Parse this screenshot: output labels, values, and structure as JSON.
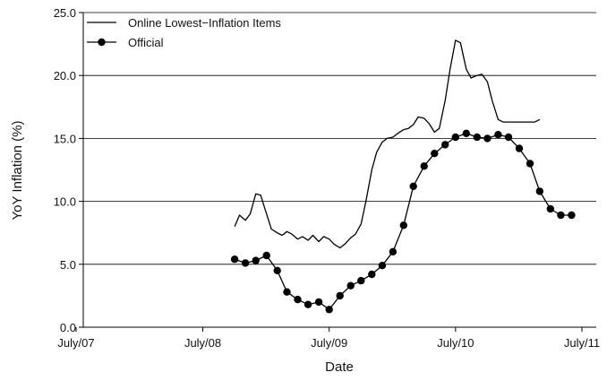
{
  "chart_data": {
    "type": "line",
    "title": "",
    "xlabel": "Date",
    "ylabel": "YoY Inflation (%)",
    "ylim": [
      0,
      25
    ],
    "xlim": [
      "2007-07",
      "2011-07"
    ],
    "x_ticks": [
      "July/07",
      "July/08",
      "July/09",
      "July/10",
      "July/11"
    ],
    "y_ticks": [
      "0.0",
      "5.0",
      "10.0",
      "15.0",
      "20.0",
      "25.0"
    ],
    "grid": "horizontal",
    "legend_position": "top-left",
    "series": [
      {
        "name": "Online Lowest−Inflation Items",
        "marker": "none",
        "color": "#000000",
        "x": [
          "2008-10-01",
          "2008-10-15",
          "2008-11-01",
          "2008-11-15",
          "2008-12-01",
          "2008-12-15",
          "2009-01-01",
          "2009-01-15",
          "2009-02-01",
          "2009-02-15",
          "2009-03-01",
          "2009-03-15",
          "2009-04-01",
          "2009-04-15",
          "2009-05-01",
          "2009-05-15",
          "2009-06-01",
          "2009-06-15",
          "2009-07-01",
          "2009-07-15",
          "2009-08-01",
          "2009-08-15",
          "2009-09-01",
          "2009-09-15",
          "2009-10-01",
          "2009-10-15",
          "2009-11-01",
          "2009-11-15",
          "2009-12-01",
          "2009-12-15",
          "2010-01-01",
          "2010-01-15",
          "2010-02-01",
          "2010-02-15",
          "2010-03-01",
          "2010-03-15",
          "2010-04-01",
          "2010-04-15",
          "2010-05-01",
          "2010-05-15",
          "2010-06-01",
          "2010-06-15",
          "2010-07-01",
          "2010-07-15",
          "2010-08-01",
          "2010-08-15",
          "2010-09-01",
          "2010-09-15",
          "2010-10-01",
          "2010-10-15",
          "2010-11-01",
          "2010-11-15",
          "2010-12-01",
          "2010-12-15",
          "2011-01-01",
          "2011-01-15",
          "2011-02-01",
          "2011-02-15",
          "2011-03-01"
        ],
        "values": [
          8.0,
          8.9,
          8.5,
          9.0,
          10.6,
          10.5,
          9.0,
          7.8,
          7.5,
          7.3,
          7.6,
          7.4,
          7.0,
          7.2,
          6.9,
          7.3,
          6.8,
          7.2,
          7.0,
          6.6,
          6.3,
          6.6,
          7.1,
          7.4,
          8.2,
          10.0,
          12.5,
          13.9,
          14.7,
          15.0,
          15.1,
          15.4,
          15.7,
          15.8,
          16.1,
          16.7,
          16.6,
          16.2,
          15.5,
          15.8,
          18.0,
          20.5,
          22.8,
          22.6,
          20.5,
          19.8,
          20.0,
          20.1,
          19.5,
          18.0,
          16.5,
          16.3,
          16.3,
          16.3,
          16.3,
          16.3,
          16.3,
          16.3,
          16.5
        ]
      },
      {
        "name": "Official",
        "marker": "circle",
        "color": "#000000",
        "x": [
          "2008-10-01",
          "2008-11-01",
          "2008-12-01",
          "2009-01-01",
          "2009-02-01",
          "2009-03-01",
          "2009-04-01",
          "2009-05-01",
          "2009-06-01",
          "2009-07-01",
          "2009-08-01",
          "2009-09-01",
          "2009-10-01",
          "2009-11-01",
          "2009-12-01",
          "2010-01-01",
          "2010-02-01",
          "2010-03-01",
          "2010-04-01",
          "2010-05-01",
          "2010-06-01",
          "2010-07-01",
          "2010-08-01",
          "2010-09-01",
          "2010-10-01",
          "2010-11-01",
          "2010-12-01",
          "2011-01-01",
          "2011-02-01",
          "2011-03-01",
          "2011-04-01",
          "2011-05-01",
          "2011-06-01"
        ],
        "values": [
          5.4,
          5.1,
          5.3,
          5.7,
          4.5,
          2.8,
          2.2,
          1.8,
          2.0,
          1.4,
          2.5,
          3.3,
          3.7,
          4.2,
          4.9,
          6.0,
          8.1,
          11.2,
          12.8,
          13.8,
          14.5,
          15.1,
          15.4,
          15.1,
          15.0,
          15.3,
          15.1,
          14.2,
          13.0,
          10.8,
          9.4,
          8.9,
          8.9
        ]
      }
    ]
  }
}
